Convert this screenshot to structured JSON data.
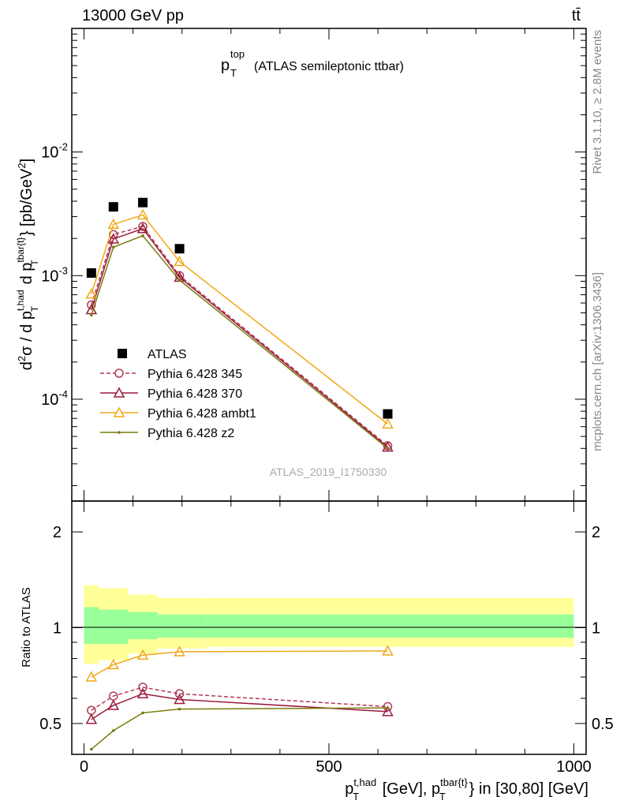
{
  "header": {
    "energy_label": "13000 GeV pp",
    "process_label": "tt̄"
  },
  "side_labels": {
    "rivet": "Rivet 3.1.10, ≥ 2.8M events",
    "mcplots": "mcplots.cern.ch [arXiv:1306.3436]"
  },
  "watermark": "ATLAS_2019_I1750330",
  "main_panel": {
    "title_main": "p",
    "title_sup": "top",
    "title_sub": "T",
    "title_rest": "(ATLAS semileptonic ttbar)",
    "ylabel": "d²σ / d p_T^{t,had} d p_T^{tbar{t}} [pb/GeV²]",
    "ytick_labels": [
      "10^{-4}",
      "10^{-3}",
      "10^{-2}"
    ]
  },
  "ratio_panel": {
    "ylabel": "Ratio to ATLAS",
    "ytick_labels": [
      "0.5",
      "1",
      "2"
    ]
  },
  "xaxis": {
    "label": "p_T^{t,had} [GeV], p_T^{tbar{t}} in [30,80] [GeV]",
    "tick_labels": [
      "0",
      "500",
      "1000"
    ]
  },
  "chart_data": [
    {
      "type": "scatter",
      "panel": "main",
      "yscale": "log",
      "xlim": [
        -25,
        1025
      ],
      "ylim": [
        1.5e-05,
        0.1
      ],
      "x": [
        15,
        60,
        120,
        195,
        620
      ],
      "series": [
        {
          "name": "ATLAS",
          "marker": "square",
          "color": "#000000",
          "values": [
            0.00105,
            0.0036,
            0.0039,
            0.00165,
            7.6e-05
          ]
        },
        {
          "name": "Pythia 6.428 345",
          "marker": "circle",
          "dashed": true,
          "color": "#b03a55",
          "values": [
            0.00058,
            0.00215,
            0.0025,
            0.001,
            4.2e-05
          ]
        },
        {
          "name": "Pythia 6.428 370",
          "marker": "triangle",
          "dashed": false,
          "color": "#9b1b3a",
          "values": [
            0.00053,
            0.00198,
            0.0024,
            0.00097,
            4.1e-05
          ]
        },
        {
          "name": "Pythia 6.428 ambt1",
          "marker": "triangle",
          "dashed": false,
          "color": "#f0a818",
          "values": [
            0.00071,
            0.0026,
            0.0031,
            0.0013,
            6.3e-05
          ]
        },
        {
          "name": "Pythia 6.428 z2",
          "marker": "dot",
          "dashed": false,
          "color": "#7b7a0c",
          "values": [
            0.00048,
            0.0017,
            0.0021,
            0.00092,
            4e-05
          ]
        }
      ],
      "legend_position": "lower-left"
    },
    {
      "type": "line",
      "panel": "ratio",
      "yscale": "log",
      "ylim": [
        0.4,
        2.5
      ],
      "x": [
        15,
        60,
        120,
        195,
        620
      ],
      "bands": {
        "bin_edges": [
          0,
          30,
          90,
          150,
          250,
          1000
        ],
        "stat_lower": [
          0.89,
          0.89,
          0.92,
          0.93,
          0.93
        ],
        "stat_upper": [
          1.16,
          1.14,
          1.12,
          1.1,
          1.1
        ],
        "total_lower": [
          0.77,
          0.79,
          0.83,
          0.86,
          0.87
        ],
        "total_upper": [
          1.36,
          1.33,
          1.27,
          1.24,
          1.24
        ]
      },
      "series": [
        {
          "name": "Pythia 6.428 345",
          "color": "#b03a55",
          "values": [
            0.55,
            0.61,
            0.65,
            0.62,
            0.565
          ]
        },
        {
          "name": "Pythia 6.428 370",
          "color": "#9b1b3a",
          "values": [
            0.515,
            0.57,
            0.62,
            0.595,
            0.545
          ]
        },
        {
          "name": "Pythia 6.428 ambt1",
          "color": "#f0a818",
          "values": [
            0.7,
            0.765,
            0.82,
            0.84,
            0.845
          ]
        },
        {
          "name": "Pythia 6.428 z2",
          "color": "#7b7a0c",
          "values": [
            0.415,
            0.475,
            0.54,
            0.555,
            0.56
          ]
        }
      ]
    }
  ]
}
